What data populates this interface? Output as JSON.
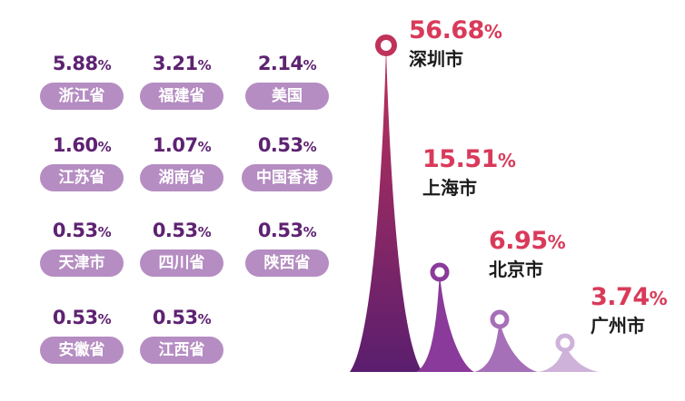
{
  "chart_data": {
    "type": "bar",
    "style": "peak",
    "unit": "%",
    "main": [
      {
        "name": "深圳市",
        "value": 56.68,
        "label": "56.68",
        "color": "#d93a5a"
      },
      {
        "name": "上海市",
        "value": 15.51,
        "label": "15.51",
        "color": "#d93a5a"
      },
      {
        "name": "北京市",
        "value": 6.95,
        "label": "6.95",
        "color": "#d93a5a"
      },
      {
        "name": "广州市",
        "value": 3.74,
        "label": "3.74",
        "color": "#d93a5a"
      }
    ],
    "others": [
      {
        "name": "浙江省",
        "value": 5.88,
        "label": "5.88"
      },
      {
        "name": "福建省",
        "value": 3.21,
        "label": "3.21"
      },
      {
        "name": "美国",
        "value": 2.14,
        "label": "2.14"
      },
      {
        "name": "江苏省",
        "value": 1.6,
        "label": "1.60"
      },
      {
        "name": "湖南省",
        "value": 1.07,
        "label": "1.07"
      },
      {
        "name": "中国香港",
        "value": 0.53,
        "label": "0.53"
      },
      {
        "name": "天津市",
        "value": 0.53,
        "label": "0.53"
      },
      {
        "name": "四川省",
        "value": 0.53,
        "label": "0.53"
      },
      {
        "name": "陕西省",
        "value": 0.53,
        "label": "0.53"
      },
      {
        "name": "安徽省",
        "value": 0.53,
        "label": "0.53"
      },
      {
        "name": "江西省",
        "value": 0.53,
        "label": "0.53"
      }
    ]
  },
  "colors": {
    "others_value": "#5e2272",
    "pill": "#b58dc2",
    "peak_fills": [
      "#c0325a",
      "#8a3a9a",
      "#a670b8",
      "#cfb2da"
    ],
    "peak_label": "#d93a5a"
  }
}
